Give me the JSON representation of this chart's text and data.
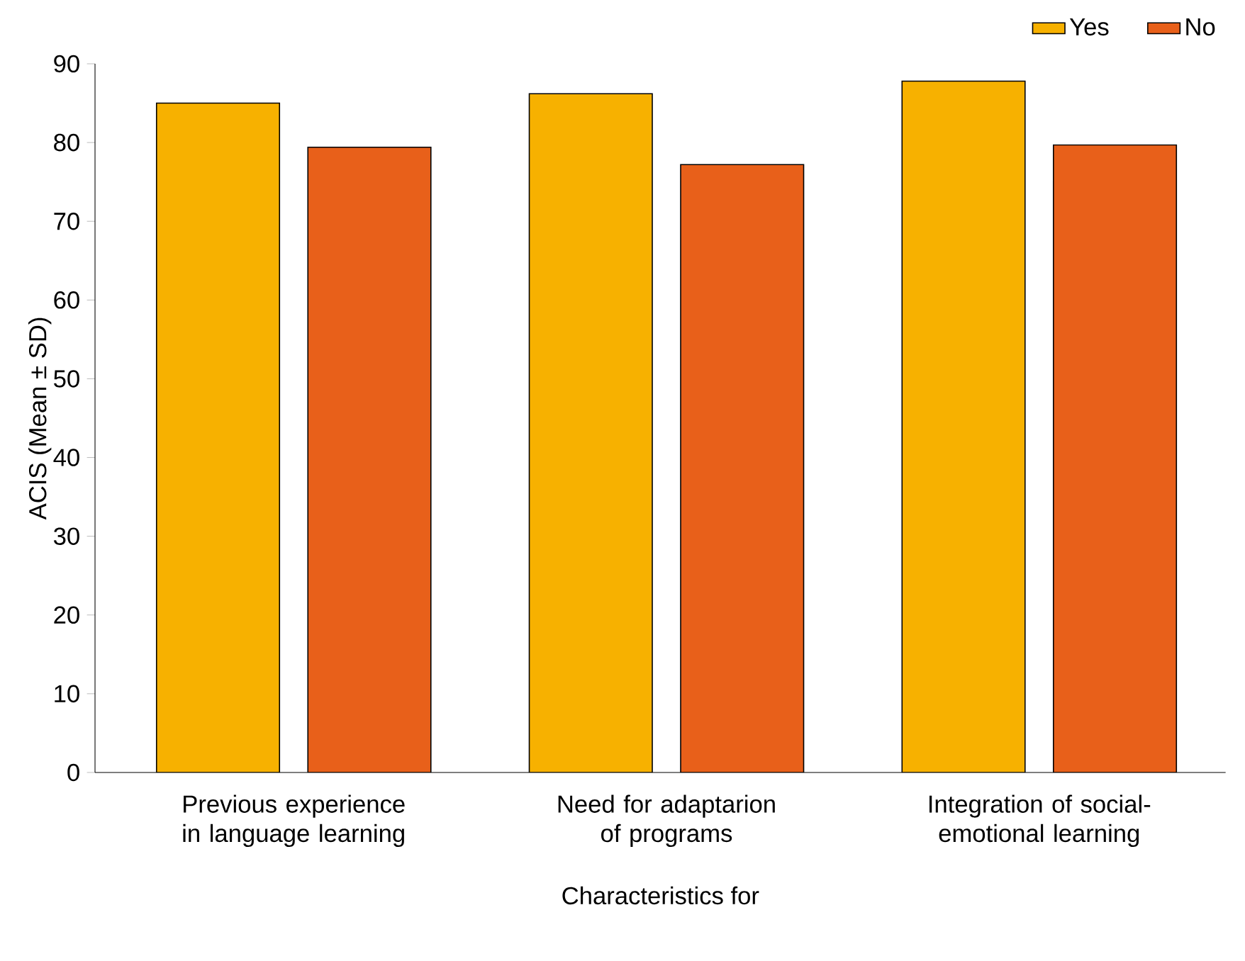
{
  "chart_data": {
    "type": "bar",
    "xlabel": "Characteristics for",
    "ylabel": "ACIS (Mean ± SD)",
    "categories": [
      "Previous experience in language learning",
      "Need for adaptarion of programs",
      "Integration of social-emotional learning"
    ],
    "series": [
      {
        "name": "Yes",
        "color": "#f7b100",
        "values": [
          85,
          86.2,
          87.8
        ]
      },
      {
        "name": "No",
        "color": "#e8601a",
        "values": [
          79.4,
          77.2,
          79.7
        ]
      }
    ],
    "ylim": [
      0,
      90
    ],
    "yticks": [
      0,
      10,
      20,
      30,
      40,
      50,
      60,
      70,
      80,
      90
    ],
    "grid": false,
    "legend": "top right"
  }
}
